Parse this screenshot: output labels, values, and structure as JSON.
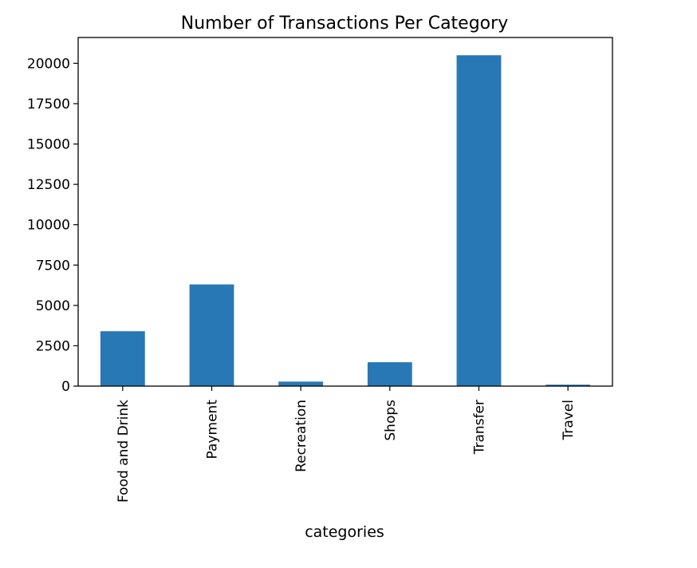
{
  "chart_data": {
    "type": "bar",
    "title": "Number of Transactions Per Category",
    "xlabel": "categories",
    "ylabel": "",
    "categories": [
      "Food and Drink",
      "Payment",
      "Recreation",
      "Shops",
      "Transfer",
      "Travel"
    ],
    "values": [
      3400,
      6300,
      280,
      1480,
      20500,
      90
    ],
    "ylim": [
      0,
      21600
    ],
    "yticks": [
      0,
      2500,
      5000,
      7500,
      10000,
      12500,
      15000,
      17500,
      20000
    ],
    "grid": false,
    "legend": "none",
    "bar_color": "#2878b5"
  }
}
